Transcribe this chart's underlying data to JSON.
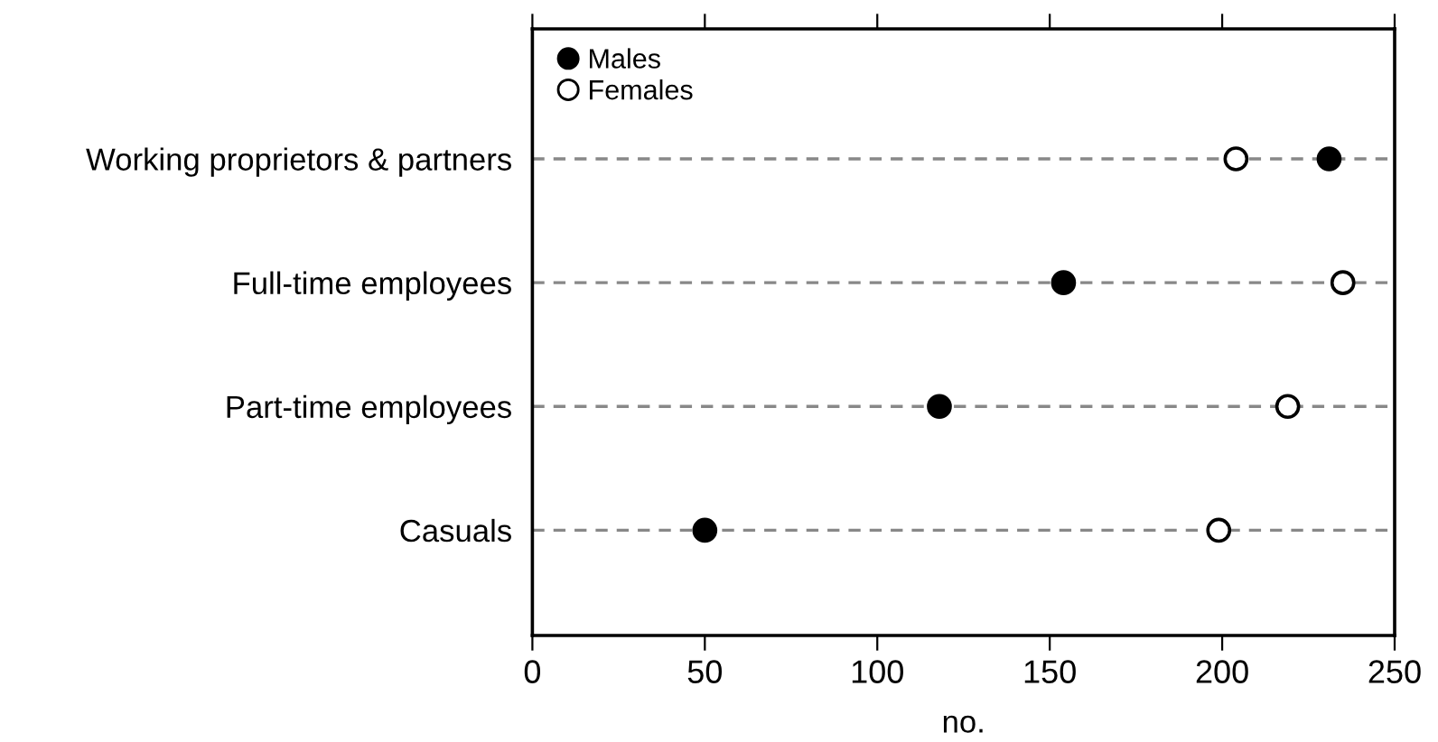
{
  "chart_data": {
    "type": "scatter",
    "orientation": "horizontal",
    "xlabel": "no.",
    "categories": [
      "Working proprietors & partners",
      "Full-time employees",
      "Part-time employees",
      "Casuals"
    ],
    "series": [
      {
        "name": "Males",
        "color": "#000000",
        "values": [
          231,
          154,
          118,
          50
        ],
        "marker": "circle"
      },
      {
        "name": "Females",
        "color": "#ffffff",
        "values": [
          204,
          235,
          219,
          199
        ],
        "marker": "circle"
      }
    ],
    "xlim": [
      0,
      250
    ],
    "xticks": [
      0,
      50,
      100,
      150,
      200,
      250
    ],
    "grid": "y",
    "line_style": "dashed",
    "legend": "top left"
  }
}
